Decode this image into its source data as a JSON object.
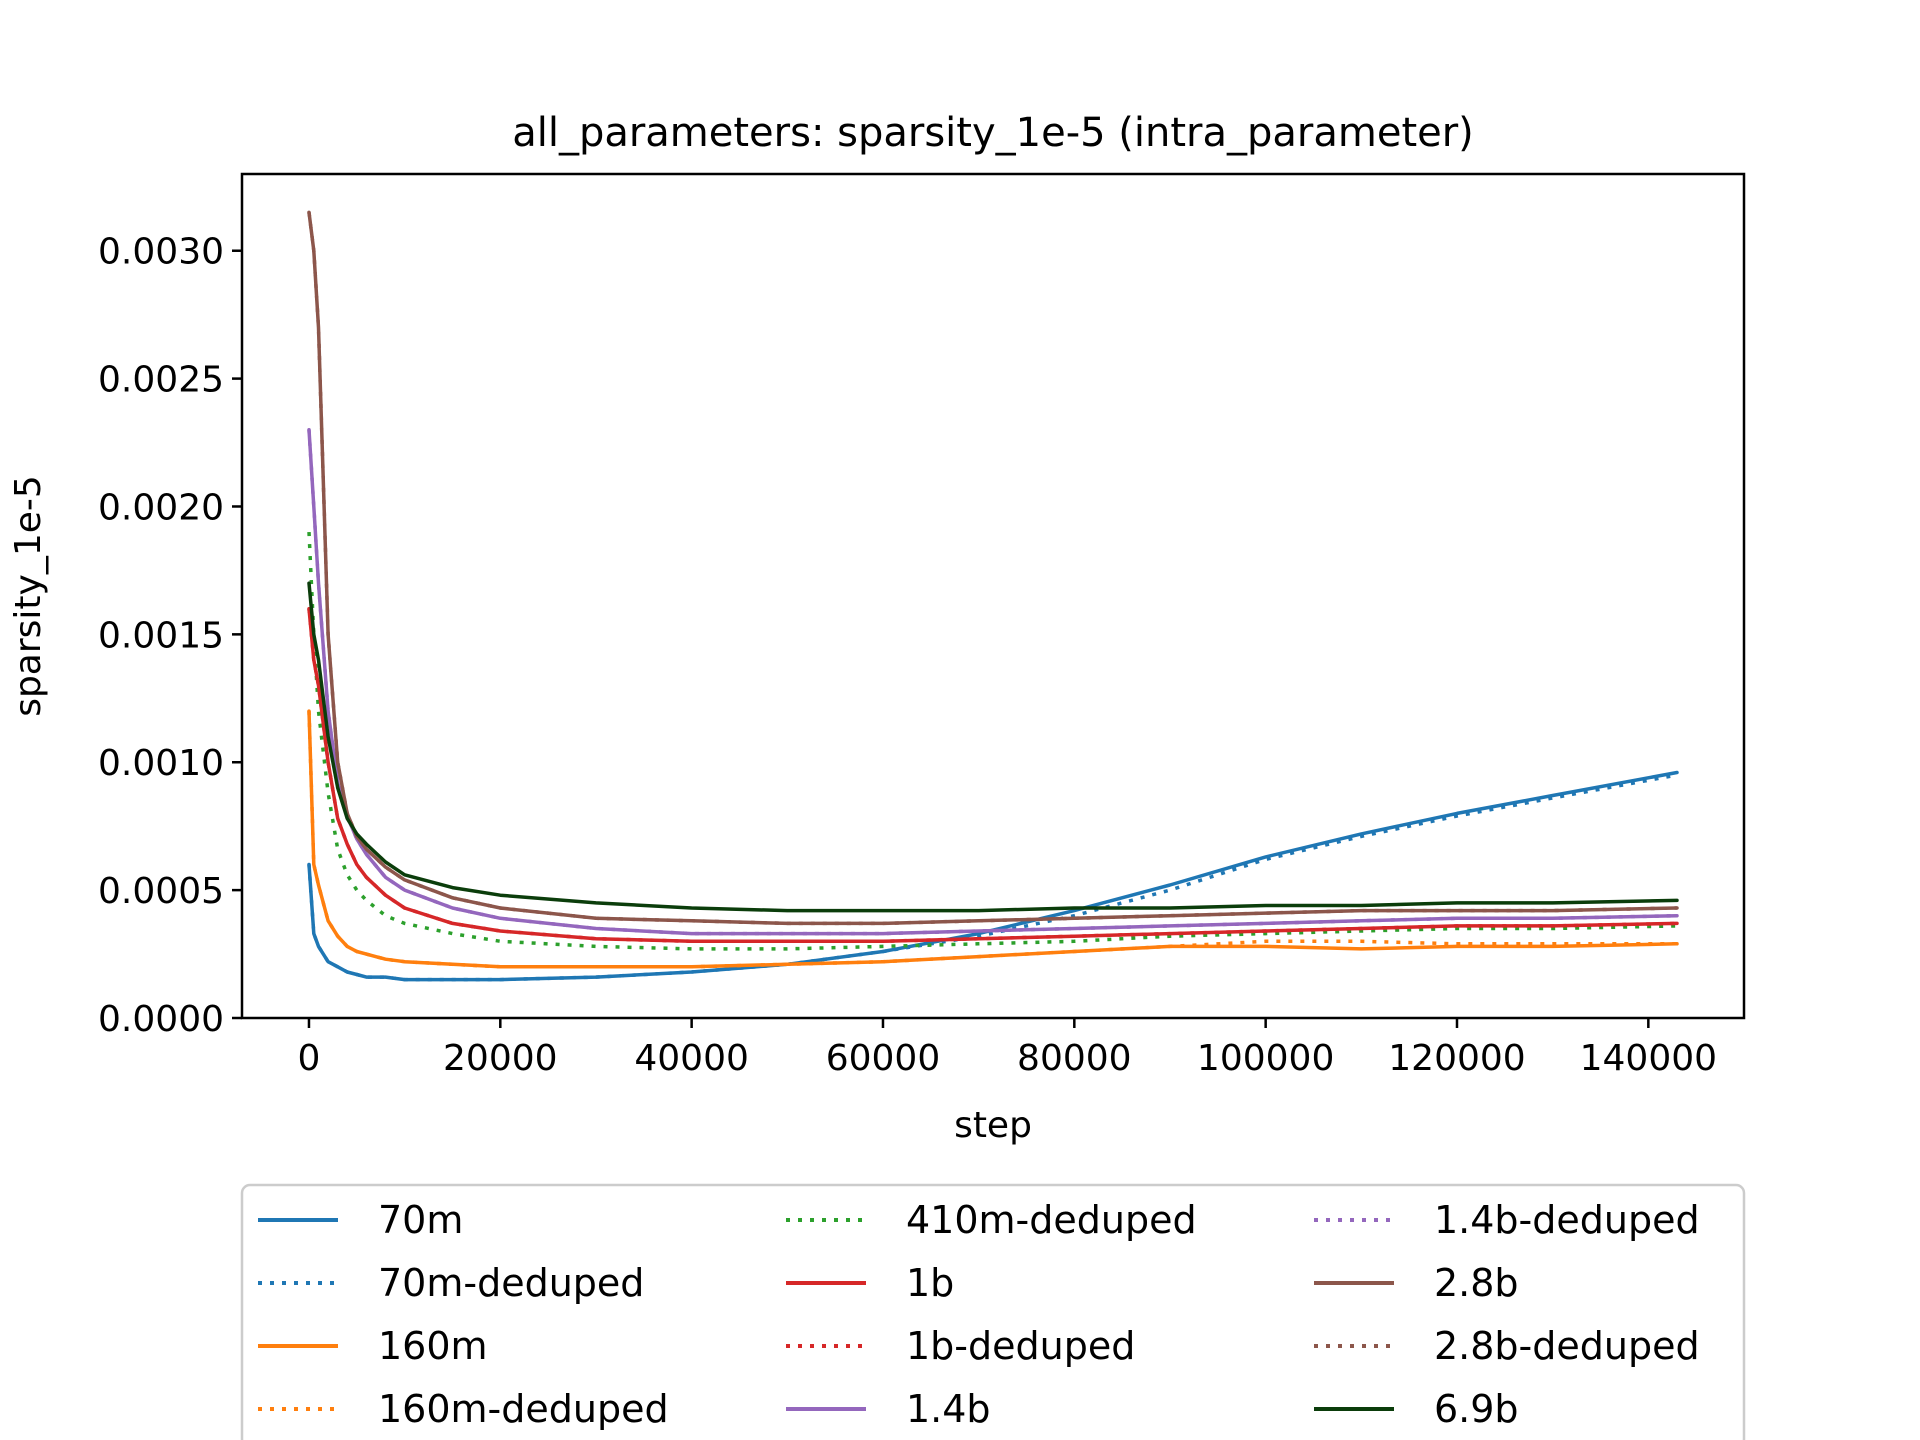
{
  "chart_data": {
    "type": "line",
    "title": "all_parameters: sparsity_1e-5 (intra_parameter)",
    "xlabel": "step",
    "ylabel": "sparsity_1e-5",
    "xlim": [
      -7000,
      150000
    ],
    "ylim": [
      0,
      0.0033
    ],
    "xticks": [
      0,
      20000,
      40000,
      60000,
      80000,
      100000,
      120000,
      140000
    ],
    "xtick_labels": [
      "0",
      "20000",
      "40000",
      "60000",
      "80000",
      "100000",
      "120000",
      "140000"
    ],
    "yticks": [
      0,
      0.0005,
      0.001,
      0.0015,
      0.002,
      0.0025,
      0.003
    ],
    "ytick_labels": [
      "0.0000",
      "0.0005",
      "0.0010",
      "0.0015",
      "0.0020",
      "0.0025",
      "0.0030"
    ],
    "grid": false,
    "legend_placement": "below-plot",
    "x": [
      0,
      500,
      1000,
      2000,
      3000,
      4000,
      5000,
      6000,
      8000,
      10000,
      15000,
      20000,
      30000,
      40000,
      50000,
      60000,
      70000,
      80000,
      90000,
      100000,
      110000,
      120000,
      130000,
      143000
    ],
    "series": [
      {
        "name": "70m",
        "color": "#1f77b4",
        "dash": "solid",
        "values": [
          0.0006,
          0.00033,
          0.00028,
          0.00022,
          0.0002,
          0.00018,
          0.00017,
          0.00016,
          0.00016,
          0.00015,
          0.00015,
          0.00015,
          0.00016,
          0.00018,
          0.00021,
          0.00026,
          0.00033,
          0.00042,
          0.00052,
          0.00063,
          0.00072,
          0.0008,
          0.00087,
          0.00096
        ]
      },
      {
        "name": "70m-deduped",
        "color": "#1f77b4",
        "dash": "dotted",
        "values": [
          0.0006,
          0.00033,
          0.00028,
          0.00022,
          0.0002,
          0.00018,
          0.00017,
          0.00016,
          0.00016,
          0.00015,
          0.00015,
          0.00015,
          0.00016,
          0.00018,
          0.00021,
          0.00026,
          0.00032,
          0.0004,
          0.0005,
          0.00062,
          0.00071,
          0.00079,
          0.00086,
          0.00095
        ]
      },
      {
        "name": "160m",
        "color": "#ff7f0e",
        "dash": "solid",
        "values": [
          0.0012,
          0.0006,
          0.00052,
          0.00038,
          0.00032,
          0.00028,
          0.00026,
          0.00025,
          0.00023,
          0.00022,
          0.00021,
          0.0002,
          0.0002,
          0.0002,
          0.00021,
          0.00022,
          0.00024,
          0.00026,
          0.00028,
          0.00028,
          0.00027,
          0.00028,
          0.00028,
          0.00029
        ]
      },
      {
        "name": "160m-deduped",
        "color": "#ff7f0e",
        "dash": "dotted",
        "values": [
          0.0012,
          0.0006,
          0.00052,
          0.00038,
          0.00032,
          0.00028,
          0.00026,
          0.00025,
          0.00023,
          0.00022,
          0.00021,
          0.0002,
          0.0002,
          0.0002,
          0.00021,
          0.00022,
          0.00024,
          0.00026,
          0.00028,
          0.0003,
          0.0003,
          0.00029,
          0.00029,
          0.00029
        ]
      },
      {
        "name": "410m-deduped",
        "color": "#2ca02c",
        "dash": "dotted",
        "values": [
          0.0019,
          0.0015,
          0.0012,
          0.00088,
          0.00066,
          0.00056,
          0.0005,
          0.00046,
          0.0004,
          0.00037,
          0.00033,
          0.0003,
          0.00028,
          0.00027,
          0.00027,
          0.00028,
          0.00029,
          0.0003,
          0.00032,
          0.00033,
          0.00034,
          0.00035,
          0.00035,
          0.00036
        ]
      },
      {
        "name": "1b",
        "color": "#d62728",
        "dash": "solid",
        "values": [
          0.0016,
          0.0014,
          0.0013,
          0.001,
          0.00078,
          0.00068,
          0.0006,
          0.00055,
          0.00048,
          0.00043,
          0.00037,
          0.00034,
          0.00031,
          0.0003,
          0.0003,
          0.0003,
          0.00031,
          0.00032,
          0.00033,
          0.00034,
          0.00035,
          0.00036,
          0.00036,
          0.00037
        ]
      },
      {
        "name": "1b-deduped",
        "color": "#d62728",
        "dash": "dotted",
        "values": [
          0.0016,
          0.0014,
          0.0013,
          0.001,
          0.00078,
          0.00068,
          0.0006,
          0.00055,
          0.00048,
          0.00043,
          0.00037,
          0.00034,
          0.00031,
          0.0003,
          0.0003,
          0.0003,
          0.00031,
          0.00032,
          0.00033,
          0.00034,
          0.00035,
          0.00036,
          0.00036,
          0.00037
        ]
      },
      {
        "name": "1.4b",
        "color": "#9467bd",
        "dash": "solid",
        "values": [
          0.0023,
          0.002,
          0.0017,
          0.0012,
          0.00092,
          0.00079,
          0.0007,
          0.00064,
          0.00055,
          0.0005,
          0.00043,
          0.00039,
          0.00035,
          0.00033,
          0.00033,
          0.00033,
          0.00034,
          0.00035,
          0.00036,
          0.00037,
          0.00038,
          0.00039,
          0.00039,
          0.0004
        ]
      },
      {
        "name": "1.4b-deduped",
        "color": "#9467bd",
        "dash": "dotted",
        "values": [
          0.0023,
          0.002,
          0.0017,
          0.0012,
          0.00092,
          0.00079,
          0.0007,
          0.00064,
          0.00055,
          0.0005,
          0.00043,
          0.00039,
          0.00035,
          0.00033,
          0.00033,
          0.00033,
          0.00034,
          0.00035,
          0.00036,
          0.00037,
          0.00038,
          0.00039,
          0.00039,
          0.0004
        ]
      },
      {
        "name": "2.8b",
        "color": "#8c564b",
        "dash": "solid",
        "values": [
          0.00315,
          0.003,
          0.0027,
          0.0015,
          0.001,
          0.0008,
          0.00071,
          0.00066,
          0.00059,
          0.00054,
          0.00047,
          0.00043,
          0.00039,
          0.00038,
          0.00037,
          0.00037,
          0.00038,
          0.00039,
          0.0004,
          0.00041,
          0.00042,
          0.00042,
          0.00042,
          0.00043
        ]
      },
      {
        "name": "2.8b-deduped",
        "color": "#8c564b",
        "dash": "dotted",
        "values": [
          0.00315,
          0.003,
          0.0027,
          0.0015,
          0.001,
          0.0008,
          0.00071,
          0.00066,
          0.00059,
          0.00054,
          0.00047,
          0.00043,
          0.00039,
          0.00038,
          0.00037,
          0.00037,
          0.00038,
          0.00039,
          0.0004,
          0.00041,
          0.00042,
          0.00042,
          0.00042,
          0.00043
        ]
      },
      {
        "name": "6.9b",
        "color": "#0b3d0b",
        "dash": "solid",
        "values": [
          0.0017,
          0.0015,
          0.0014,
          0.0011,
          0.0009,
          0.00078,
          0.00072,
          0.00068,
          0.00061,
          0.00056,
          0.00051,
          0.00048,
          0.00045,
          0.00043,
          0.00042,
          0.00042,
          0.00042,
          0.00043,
          0.00043,
          0.00044,
          0.00044,
          0.00045,
          0.00045,
          0.00046
        ]
      }
    ]
  }
}
